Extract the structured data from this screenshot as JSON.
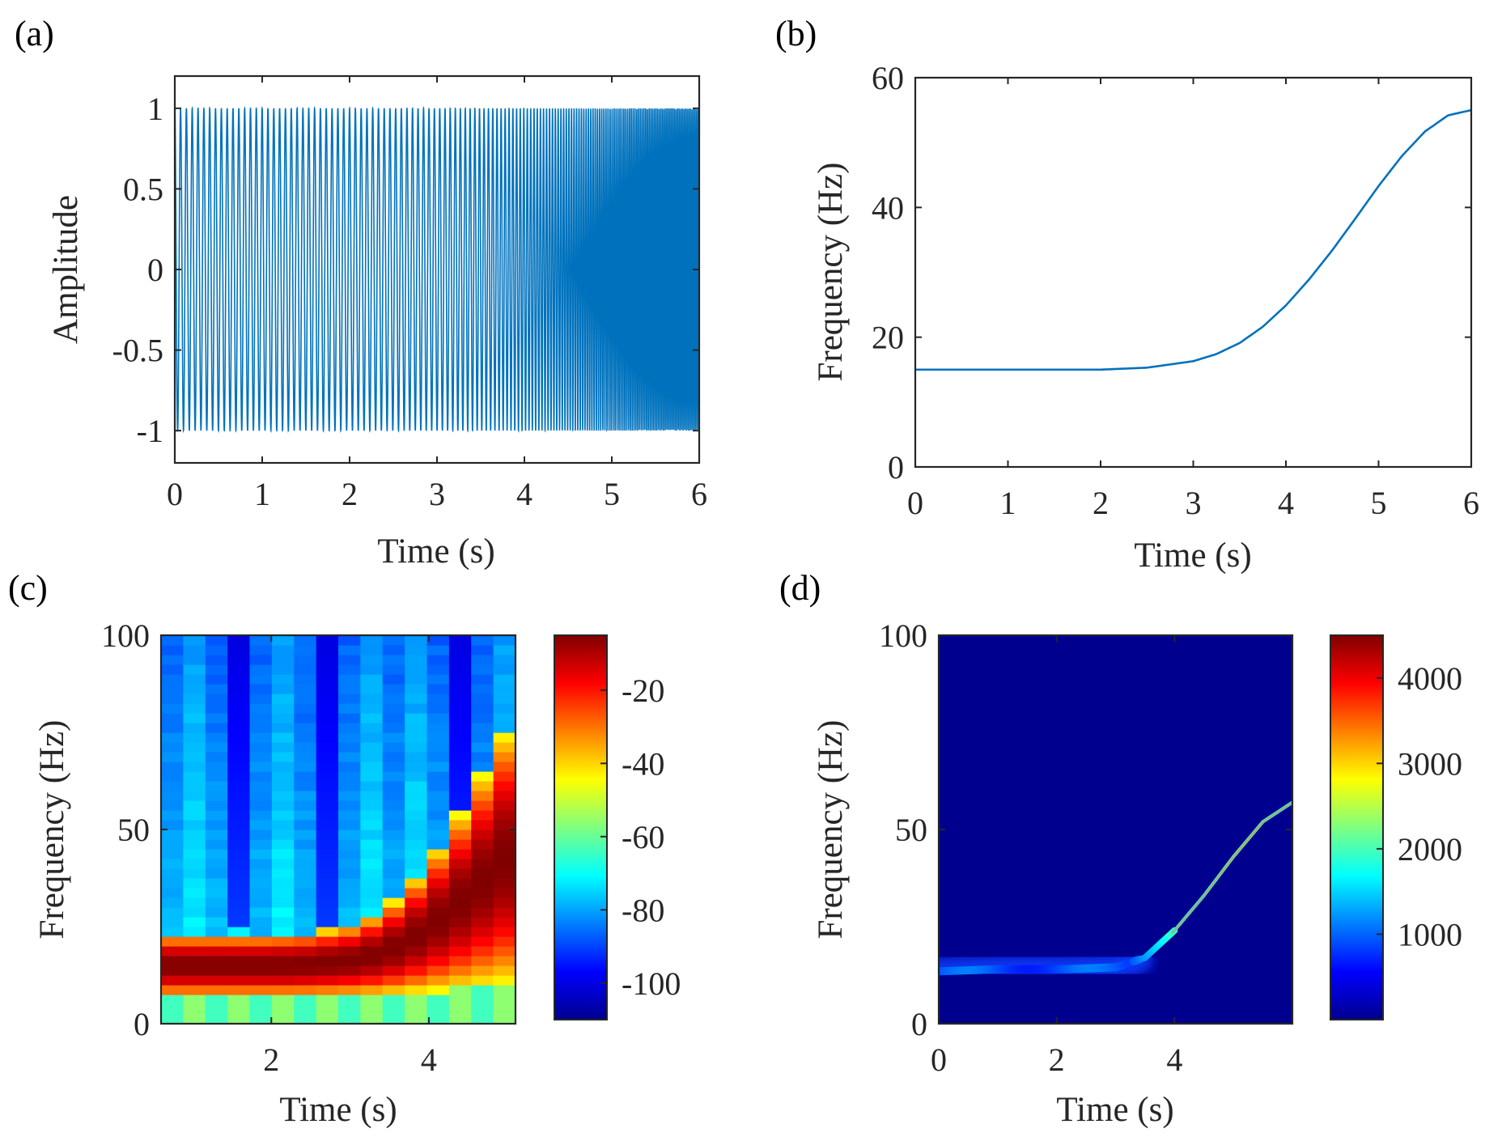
{
  "figure": {
    "panels": [
      "(a)",
      "(b)",
      "(c)",
      "(d)"
    ],
    "colors": {
      "signal": "#0072BD",
      "axis": "#262626",
      "background_d": "#00008F"
    }
  },
  "chart_data": [
    {
      "id": "a",
      "type": "line",
      "title": "",
      "xlabel": "Time (s)",
      "ylabel": "Amplitude",
      "xlim": [
        0,
        6
      ],
      "ylim": [
        -1.2,
        1.2
      ],
      "xticks": [
        0,
        1,
        2,
        3,
        4,
        5,
        6
      ],
      "xtick_labels": [
        "0",
        "1",
        "2",
        "3",
        "4",
        "5",
        "6"
      ],
      "yticks": [
        1,
        0.5,
        0,
        -0.5,
        -1
      ],
      "ytick_labels": [
        "1",
        "0.5",
        "0",
        "-0.5",
        "-1"
      ],
      "series": [
        {
          "name": "signal",
          "description": "unit-amplitude chirp, instantaneous frequency as in (b)",
          "amplitude": 1,
          "frequency_start_hz": 15,
          "frequency_end_hz": 55
        }
      ]
    },
    {
      "id": "b",
      "type": "line",
      "title": "",
      "xlabel": "Time (s)",
      "ylabel": "Frequency (Hz)",
      "xlim": [
        0,
        6
      ],
      "ylim": [
        0,
        60
      ],
      "xticks": [
        0,
        1,
        2,
        3,
        4,
        5,
        6
      ],
      "xtick_labels": [
        "0",
        "1",
        "2",
        "3",
        "4",
        "5",
        "6"
      ],
      "yticks": [
        0,
        20,
        40,
        60
      ],
      "ytick_labels": [
        "0",
        "20",
        "40",
        "60"
      ],
      "series": [
        {
          "name": "instantaneous frequency",
          "x": [
            0,
            0.5,
            1,
            1.5,
            2,
            2.5,
            3,
            3.25,
            3.5,
            3.75,
            4,
            4.25,
            4.5,
            4.75,
            5,
            5.25,
            5.5,
            5.75,
            6
          ],
          "y": [
            15,
            15,
            15,
            15,
            15,
            15.3,
            16.3,
            17.4,
            19.1,
            21.6,
            24.9,
            28.9,
            33.4,
            38.3,
            43.3,
            47.9,
            51.7,
            54.2,
            55
          ]
        }
      ]
    },
    {
      "id": "c",
      "type": "heatmap",
      "title": "",
      "xlabel": "Time (s)",
      "ylabel": "Frequency (Hz)",
      "xlim": [
        0.6,
        5.1
      ],
      "ylim": [
        0,
        100
      ],
      "xticks": [
        2,
        4
      ],
      "xtick_labels": [
        "2",
        "4"
      ],
      "yticks": [
        0,
        50,
        100
      ],
      "ytick_labels": [
        "0",
        "50",
        "100"
      ],
      "colorbar": {
        "range": [
          -110,
          -5
        ],
        "ticks": [
          -20,
          -40,
          -60,
          -80,
          -100
        ],
        "tick_labels": [
          "-20",
          "-40",
          "-60",
          "-80",
          "-100"
        ]
      },
      "ridge": {
        "description": "STFT energy ridge following instantaneous frequency",
        "peak_db": -5,
        "floor_db": -70
      },
      "dark_columns_s": [
        1.5,
        2.8,
        4.4
      ]
    },
    {
      "id": "d",
      "type": "heatmap",
      "title": "",
      "xlabel": "Time (s)",
      "ylabel": "Frequency (Hz)",
      "xlim": [
        0,
        6
      ],
      "ylim": [
        0,
        100
      ],
      "xticks": [
        0,
        2,
        4
      ],
      "xtick_labels": [
        "0",
        "2",
        "4"
      ],
      "yticks": [
        0,
        50,
        100
      ],
      "ytick_labels": [
        "0",
        "50",
        "100"
      ],
      "colorbar": {
        "range": [
          0,
          4500
        ],
        "ticks": [
          4000,
          3000,
          2000,
          1000
        ],
        "tick_labels": [
          "4000",
          "3000",
          "2000",
          "1000"
        ]
      },
      "ridge": {
        "description": "sharp time-frequency ridge following instantaneous frequency",
        "x": [
          0,
          1,
          2,
          3,
          3.5,
          4,
          4.5,
          5,
          5.5,
          6
        ],
        "y": [
          13.5,
          14,
          14,
          14.5,
          17,
          24,
          33,
          43,
          52,
          57
        ]
      }
    }
  ]
}
